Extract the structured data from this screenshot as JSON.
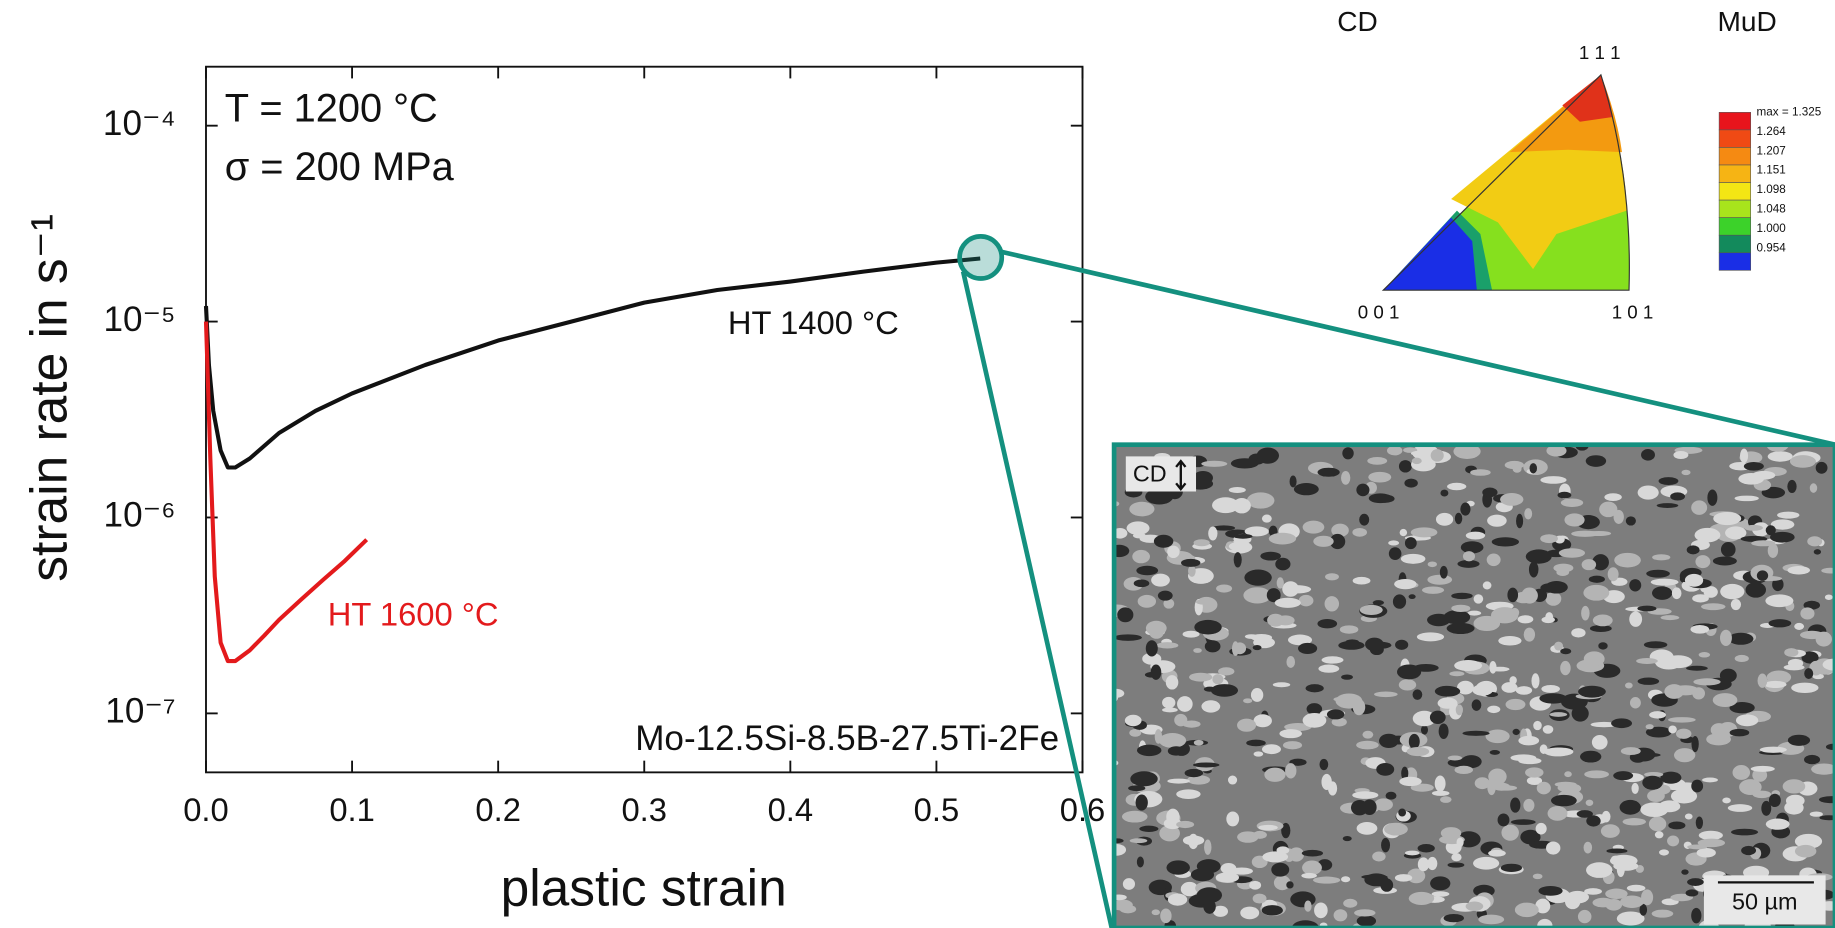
{
  "chart_data": {
    "type": "line",
    "x_label": "plastic strain",
    "y_label": "strain rate in s⁻¹",
    "log_y": true,
    "xlim": [
      0,
      0.6
    ],
    "ylim": [
      5e-08,
      0.0002
    ],
    "xticks": [
      {
        "value": 0,
        "label": "0.0"
      },
      0.1,
      0.2,
      0.3,
      0.4,
      0.5,
      0.6
    ],
    "yticks": [
      {
        "value": 1e-07,
        "label": "10⁻⁷"
      },
      {
        "value": 1e-06,
        "label": "10⁻⁶"
      },
      {
        "value": 1e-05,
        "label": "10⁻⁵"
      },
      {
        "value": 0.0001,
        "label": "10⁻⁴"
      }
    ],
    "annotations": [
      "T = 1200 °C",
      "σ = 200 MPa",
      "HT 1400 °C",
      "HT 1600 °C",
      "Mo-12.5Si-8.5B-27.5Ti-2Fe"
    ],
    "series": [
      {
        "name": "HT 1400 °C",
        "color": "#111111",
        "x": [
          0.0,
          0.002,
          0.005,
          0.01,
          0.015,
          0.02,
          0.03,
          0.05,
          0.075,
          0.1,
          0.15,
          0.2,
          0.25,
          0.3,
          0.35,
          0.4,
          0.45,
          0.5,
          0.53
        ],
        "values": [
          1.2e-05,
          6e-06,
          3.5e-06,
          2.2e-06,
          1.8e-06,
          1.8e-06,
          2e-06,
          2.7e-06,
          3.5e-06,
          4.3e-06,
          6e-06,
          8e-06,
          1e-05,
          1.25e-05,
          1.45e-05,
          1.6e-05,
          1.8e-05,
          2e-05,
          2.1e-05
        ]
      },
      {
        "name": "HT 1600 °C",
        "color": "#e31a1c",
        "x": [
          0.0,
          0.003,
          0.006,
          0.01,
          0.015,
          0.02,
          0.03,
          0.04,
          0.05,
          0.065,
          0.08,
          0.095,
          0.11
        ],
        "values": [
          1e-05,
          2e-06,
          5e-07,
          2.3e-07,
          1.85e-07,
          1.85e-07,
          2.1e-07,
          2.5e-07,
          3e-07,
          3.8e-07,
          4.8e-07,
          6e-07,
          7.7e-07
        ]
      }
    ]
  },
  "pole_figure": {
    "directions": [
      "CD",
      "MuD"
    ],
    "corners": [
      "1 1 1",
      "0 0 1",
      "1 0 1"
    ],
    "legend_labels": [
      "max = 1.325",
      "1.264",
      "1.207",
      "1.151",
      "1.098",
      "1.048",
      "1.000",
      "0.954"
    ]
  },
  "micrograph": {
    "direction": "CD",
    "scale_bar": "50 µm"
  }
}
